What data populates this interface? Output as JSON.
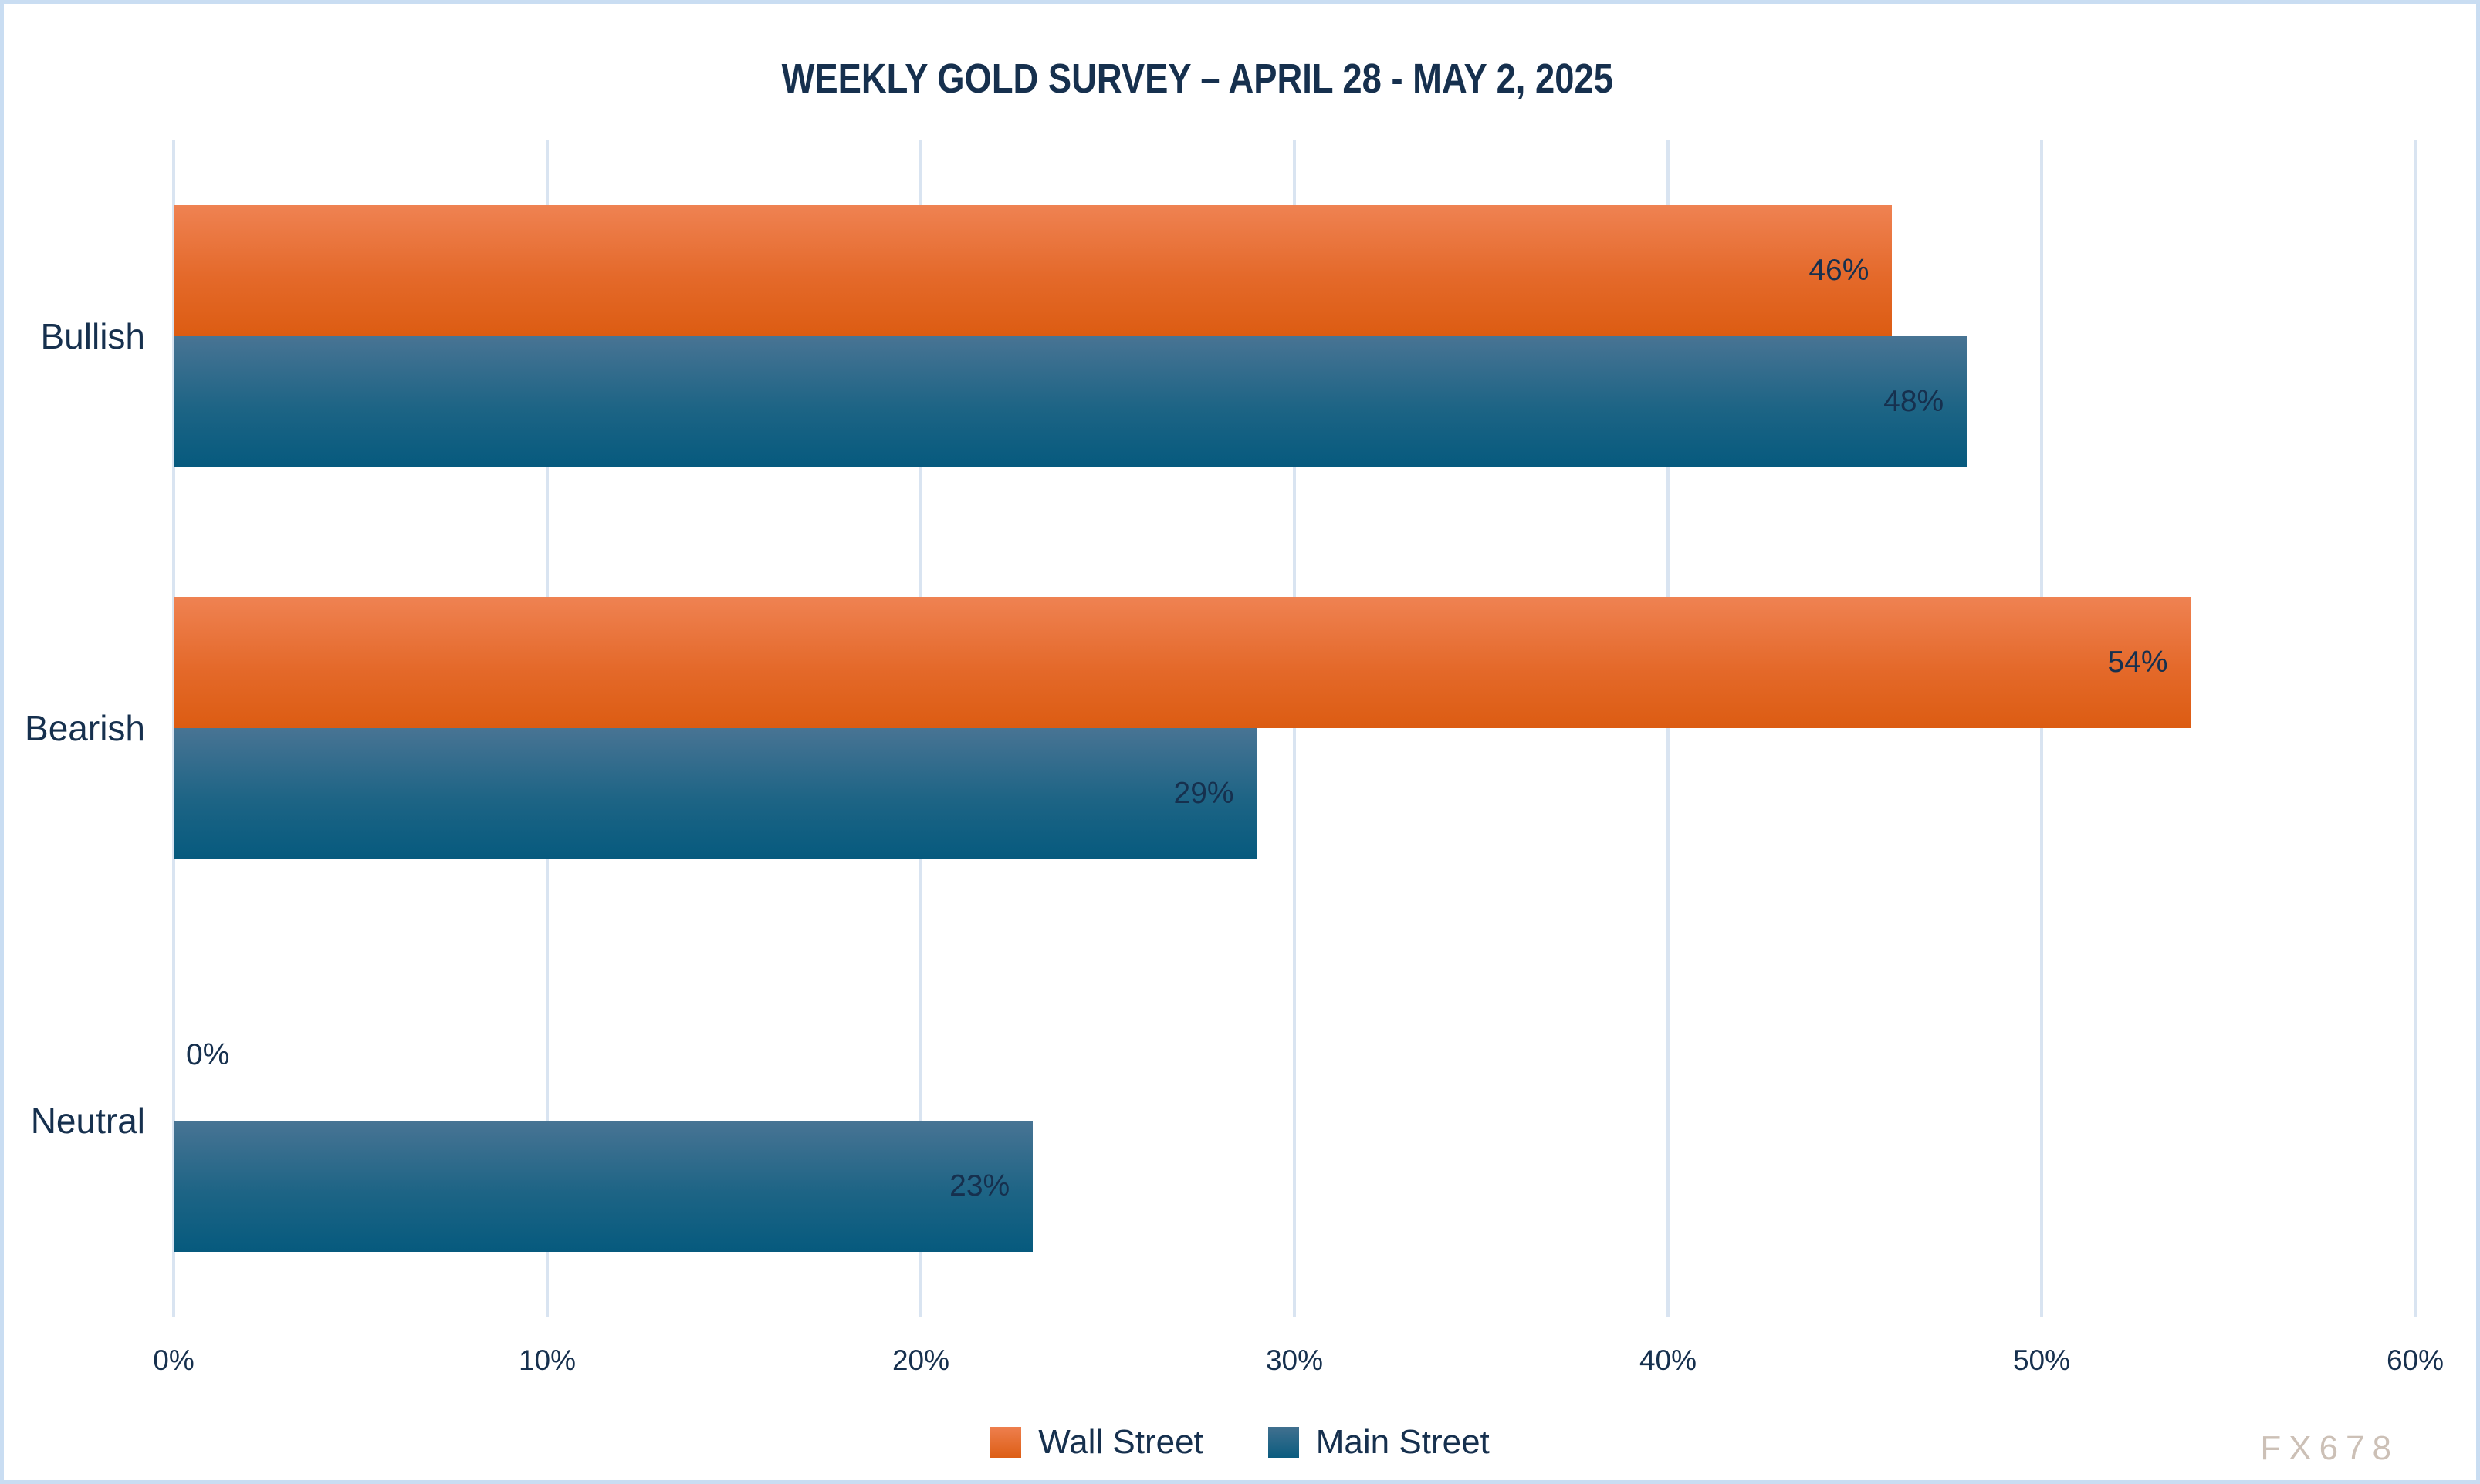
{
  "title": "WEEKLY GOLD SURVEY – APRIL 28 - MAY 2, 2025",
  "watermark": "FX678",
  "colors": {
    "wall_street_top": "#ef8252",
    "wall_street_bottom": "#dc5c12",
    "main_street_top": "#487494",
    "main_street_bottom": "#065a7e",
    "text": "#16304e",
    "gridline": "#d9e4f1",
    "border": "#c9ddf2"
  },
  "chart_data": {
    "type": "bar",
    "orientation": "horizontal",
    "title": "WEEKLY GOLD SURVEY – APRIL 28 - MAY 2, 2025",
    "categories": [
      "Bullish",
      "Bearish",
      "Neutral"
    ],
    "series": [
      {
        "name": "Wall Street",
        "values": [
          46,
          54,
          0
        ]
      },
      {
        "name": "Main Street",
        "values": [
          48,
          29,
          23
        ]
      }
    ],
    "value_suffix": "%",
    "xlim": [
      0,
      60
    ],
    "x_ticks": [
      "0%",
      "10%",
      "20%",
      "30%",
      "40%",
      "50%",
      "60%"
    ],
    "grid": true,
    "legend_position": "bottom"
  }
}
